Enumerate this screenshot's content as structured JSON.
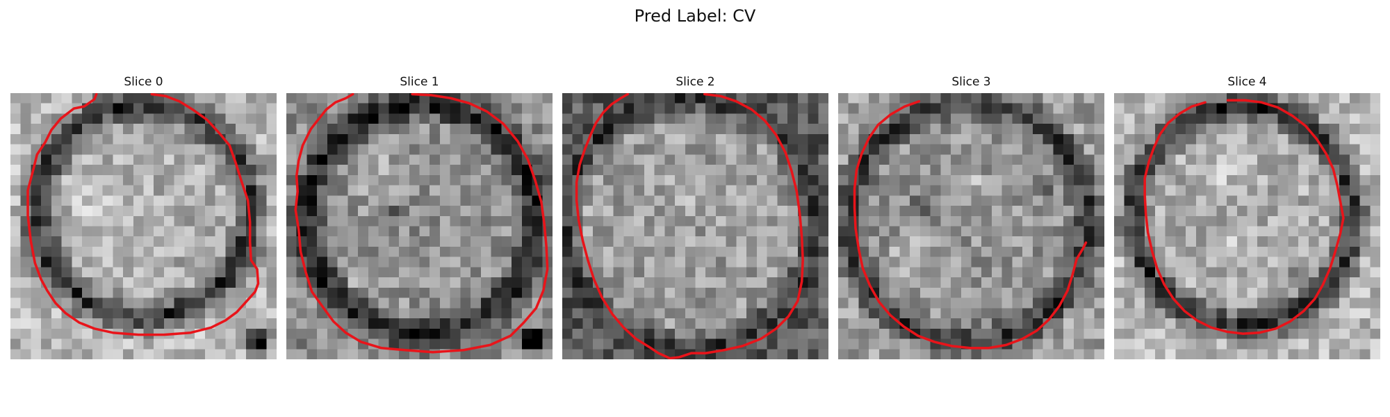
{
  "figure": {
    "title": "Pred Label: CV"
  },
  "colors": {
    "contour": "#e8141a"
  },
  "slices": [
    {
      "title": "Slice 0",
      "contour_image": [
        [
          8.4,
          0.1
        ],
        [
          8.2,
          0.6
        ],
        [
          7.2,
          1.3
        ],
        [
          6.2,
          1.5
        ],
        [
          4.9,
          2.5
        ],
        [
          4.0,
          3.6
        ],
        [
          3.4,
          4.8
        ],
        [
          2.6,
          6.0
        ],
        [
          2.2,
          7.6
        ],
        [
          1.7,
          9.5
        ],
        [
          1.7,
          12.0
        ],
        [
          2.0,
          14.5
        ],
        [
          2.4,
          16.6
        ],
        [
          3.0,
          18.2
        ],
        [
          3.6,
          19.3
        ],
        [
          4.4,
          20.5
        ],
        [
          5.4,
          21.5
        ],
        [
          6.7,
          22.4
        ],
        [
          8.2,
          23.0
        ],
        [
          10.0,
          23.4
        ],
        [
          12.5,
          23.6
        ],
        [
          15.0,
          23.6
        ],
        [
          17.6,
          23.4
        ],
        [
          19.6,
          22.9
        ],
        [
          21.0,
          22.2
        ],
        [
          22.1,
          21.4
        ],
        [
          23.0,
          20.4
        ],
        [
          23.9,
          19.4
        ],
        [
          24.2,
          18.6
        ],
        [
          24.1,
          17.2
        ],
        [
          23.5,
          16.3
        ],
        [
          23.4,
          14.5
        ],
        [
          23.4,
          12.6
        ],
        [
          23.2,
          10.5
        ],
        [
          22.6,
          8.7
        ],
        [
          22.0,
          6.8
        ],
        [
          21.4,
          5.1
        ],
        [
          20.4,
          3.9
        ],
        [
          19.2,
          2.6
        ],
        [
          17.8,
          1.6
        ],
        [
          16.5,
          0.8
        ],
        [
          15.2,
          0.3
        ],
        [
          13.8,
          0.1
        ]
      ]
    },
    {
      "title": "Slice 1",
      "contour_image": [
        [
          6.5,
          0.1
        ],
        [
          5.8,
          0.5
        ],
        [
          4.8,
          0.9
        ],
        [
          3.9,
          1.6
        ],
        [
          3.1,
          2.6
        ],
        [
          2.4,
          3.5
        ],
        [
          1.6,
          5.1
        ],
        [
          1.2,
          6.6
        ],
        [
          1.0,
          8.1
        ],
        [
          1.1,
          9.6
        ],
        [
          0.9,
          11.4
        ],
        [
          1.2,
          13.3
        ],
        [
          1.4,
          15.5
        ],
        [
          1.9,
          17.5
        ],
        [
          2.5,
          19.4
        ],
        [
          3.5,
          20.8
        ],
        [
          4.6,
          22.3
        ],
        [
          5.8,
          23.4
        ],
        [
          7.3,
          24.3
        ],
        [
          9.3,
          24.9
        ],
        [
          11.6,
          25.1
        ],
        [
          14.3,
          25.3
        ],
        [
          17.3,
          25.1
        ],
        [
          19.9,
          24.6
        ],
        [
          21.9,
          23.7
        ],
        [
          23.2,
          22.4
        ],
        [
          24.4,
          21.0
        ],
        [
          25.1,
          19.3
        ],
        [
          25.5,
          17.2
        ],
        [
          25.4,
          15.0
        ],
        [
          25.2,
          12.8
        ],
        [
          24.9,
          10.6
        ],
        [
          24.3,
          8.5
        ],
        [
          23.6,
          6.5
        ],
        [
          22.6,
          4.7
        ],
        [
          21.2,
          3.0
        ],
        [
          19.6,
          1.8
        ],
        [
          17.9,
          1.0
        ],
        [
          16.1,
          0.5
        ],
        [
          14.2,
          0.2
        ],
        [
          12.3,
          0.1
        ]
      ]
    },
    {
      "title": "Slice 2",
      "contour_image": [
        [
          6.4,
          0.1
        ],
        [
          5.7,
          0.5
        ],
        [
          4.8,
          1.1
        ],
        [
          4.0,
          1.9
        ],
        [
          3.3,
          2.9
        ],
        [
          2.8,
          4.0
        ],
        [
          2.2,
          5.5
        ],
        [
          1.7,
          7.0
        ],
        [
          1.4,
          8.7
        ],
        [
          1.4,
          10.5
        ],
        [
          1.6,
          12.4
        ],
        [
          2.0,
          14.4
        ],
        [
          2.5,
          16.3
        ],
        [
          3.1,
          18.2
        ],
        [
          3.9,
          20.0
        ],
        [
          4.9,
          21.6
        ],
        [
          6.0,
          22.9
        ],
        [
          7.2,
          24.0
        ],
        [
          8.5,
          24.8
        ],
        [
          9.4,
          25.4
        ],
        [
          10.5,
          25.9
        ],
        [
          11.4,
          25.8
        ],
        [
          12.6,
          25.4
        ],
        [
          14.0,
          25.4
        ],
        [
          15.8,
          25.1
        ],
        [
          17.6,
          24.7
        ],
        [
          19.4,
          24.0
        ],
        [
          20.9,
          23.0
        ],
        [
          22.1,
          21.8
        ],
        [
          23.0,
          20.3
        ],
        [
          23.4,
          18.4
        ],
        [
          23.5,
          16.3
        ],
        [
          23.4,
          14.1
        ],
        [
          23.2,
          11.8
        ],
        [
          22.9,
          9.6
        ],
        [
          22.4,
          7.6
        ],
        [
          21.8,
          5.8
        ],
        [
          20.9,
          4.1
        ],
        [
          19.8,
          2.7
        ],
        [
          18.5,
          1.6
        ],
        [
          17.0,
          0.8
        ],
        [
          15.5,
          0.3
        ],
        [
          13.9,
          0.1
        ]
      ]
    },
    {
      "title": "Slice 3",
      "contour_image": [
        [
          7.9,
          0.8
        ],
        [
          6.5,
          1.3
        ],
        [
          5.1,
          2.1
        ],
        [
          3.9,
          3.1
        ],
        [
          3.0,
          4.4
        ],
        [
          2.3,
          5.9
        ],
        [
          1.8,
          7.5
        ],
        [
          1.6,
          9.3
        ],
        [
          1.6,
          11.2
        ],
        [
          1.7,
          13.2
        ],
        [
          2.0,
          15.2
        ],
        [
          2.4,
          17.1
        ],
        [
          3.1,
          18.8
        ],
        [
          4.0,
          20.4
        ],
        [
          5.1,
          21.7
        ],
        [
          6.4,
          22.8
        ],
        [
          7.8,
          23.7
        ],
        [
          9.4,
          24.3
        ],
        [
          11.1,
          24.7
        ],
        [
          12.9,
          24.9
        ],
        [
          14.7,
          24.9
        ],
        [
          16.4,
          24.6
        ],
        [
          18.0,
          24.0
        ],
        [
          19.4,
          23.2
        ],
        [
          20.6,
          22.1
        ],
        [
          21.6,
          20.8
        ],
        [
          22.4,
          19.3
        ],
        [
          22.9,
          17.7
        ],
        [
          23.3,
          16.2
        ],
        [
          23.9,
          15.2
        ],
        [
          24.2,
          14.6
        ]
      ]
    },
    {
      "title": "Slice 4",
      "contour_image": [
        [
          8.9,
          0.9
        ],
        [
          7.6,
          1.3
        ],
        [
          6.4,
          2.0
        ],
        [
          5.3,
          2.9
        ],
        [
          4.5,
          4.0
        ],
        [
          3.9,
          5.3
        ],
        [
          3.4,
          6.7
        ],
        [
          3.0,
          8.3
        ],
        [
          3.0,
          10.0
        ],
        [
          3.1,
          11.8
        ],
        [
          3.3,
          13.6
        ],
        [
          3.7,
          15.4
        ],
        [
          4.2,
          17.1
        ],
        [
          4.9,
          18.7
        ],
        [
          5.8,
          20.1
        ],
        [
          6.9,
          21.3
        ],
        [
          8.1,
          22.2
        ],
        [
          9.5,
          22.9
        ],
        [
          11.0,
          23.3
        ],
        [
          12.6,
          23.5
        ],
        [
          14.2,
          23.4
        ],
        [
          15.8,
          23.0
        ],
        [
          17.2,
          22.3
        ],
        [
          18.5,
          21.3
        ],
        [
          19.6,
          20.1
        ],
        [
          20.4,
          18.7
        ],
        [
          21.1,
          17.1
        ],
        [
          21.6,
          15.5
        ],
        [
          22.1,
          13.7
        ],
        [
          22.4,
          12.2
        ],
        [
          22.1,
          10.6
        ],
        [
          21.8,
          9.0
        ],
        [
          21.4,
          7.4
        ],
        [
          20.7,
          5.9
        ],
        [
          19.8,
          4.5
        ],
        [
          18.7,
          3.2
        ],
        [
          17.4,
          2.2
        ],
        [
          16.0,
          1.4
        ],
        [
          14.4,
          0.9
        ],
        [
          12.8,
          0.7
        ],
        [
          11.1,
          0.7
        ]
      ]
    }
  ]
}
